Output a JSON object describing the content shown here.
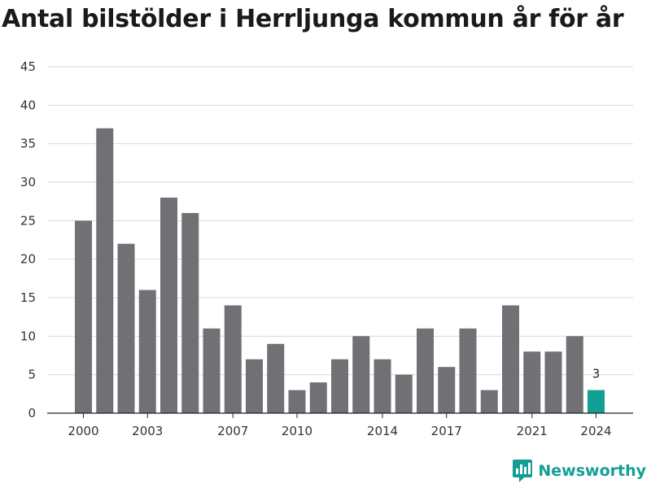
{
  "colors": {
    "bar": "#717074",
    "highlight": "#139e94",
    "grid": "#d9d9d9",
    "axis": "#222222",
    "brand": "#139e94"
  },
  "brand": {
    "name": "Newsworthy",
    "icon": "bar-chart-speech-bubble-icon"
  },
  "chart_data": {
    "type": "bar",
    "title": "Antal bilstölder i Herrljunga kommun år för år",
    "xlabel": "",
    "ylabel": "",
    "categories": [
      "2000",
      "2001",
      "2002",
      "2003",
      "2004",
      "2005",
      "2006",
      "2007",
      "2008",
      "2009",
      "2010",
      "2011",
      "2012",
      "2013",
      "2014",
      "2015",
      "2016",
      "2017",
      "2018",
      "2019",
      "2020",
      "2021",
      "2022",
      "2023",
      "2024"
    ],
    "values": [
      25,
      37,
      22,
      16,
      28,
      26,
      11,
      14,
      7,
      9,
      3,
      4,
      7,
      10,
      7,
      5,
      11,
      6,
      11,
      3,
      14,
      8,
      8,
      10,
      3
    ],
    "x_tick_labels": [
      "2000",
      "2003",
      "2007",
      "2010",
      "2014",
      "2017",
      "2021",
      "2024"
    ],
    "y_ticks": [
      0,
      5,
      10,
      15,
      20,
      25,
      30,
      35,
      40,
      45
    ],
    "ylim": [
      0,
      45
    ],
    "highlight_category": "2024",
    "data_labels": [
      {
        "category": "2024",
        "text": "3"
      }
    ],
    "grid": true,
    "legend": "none"
  }
}
